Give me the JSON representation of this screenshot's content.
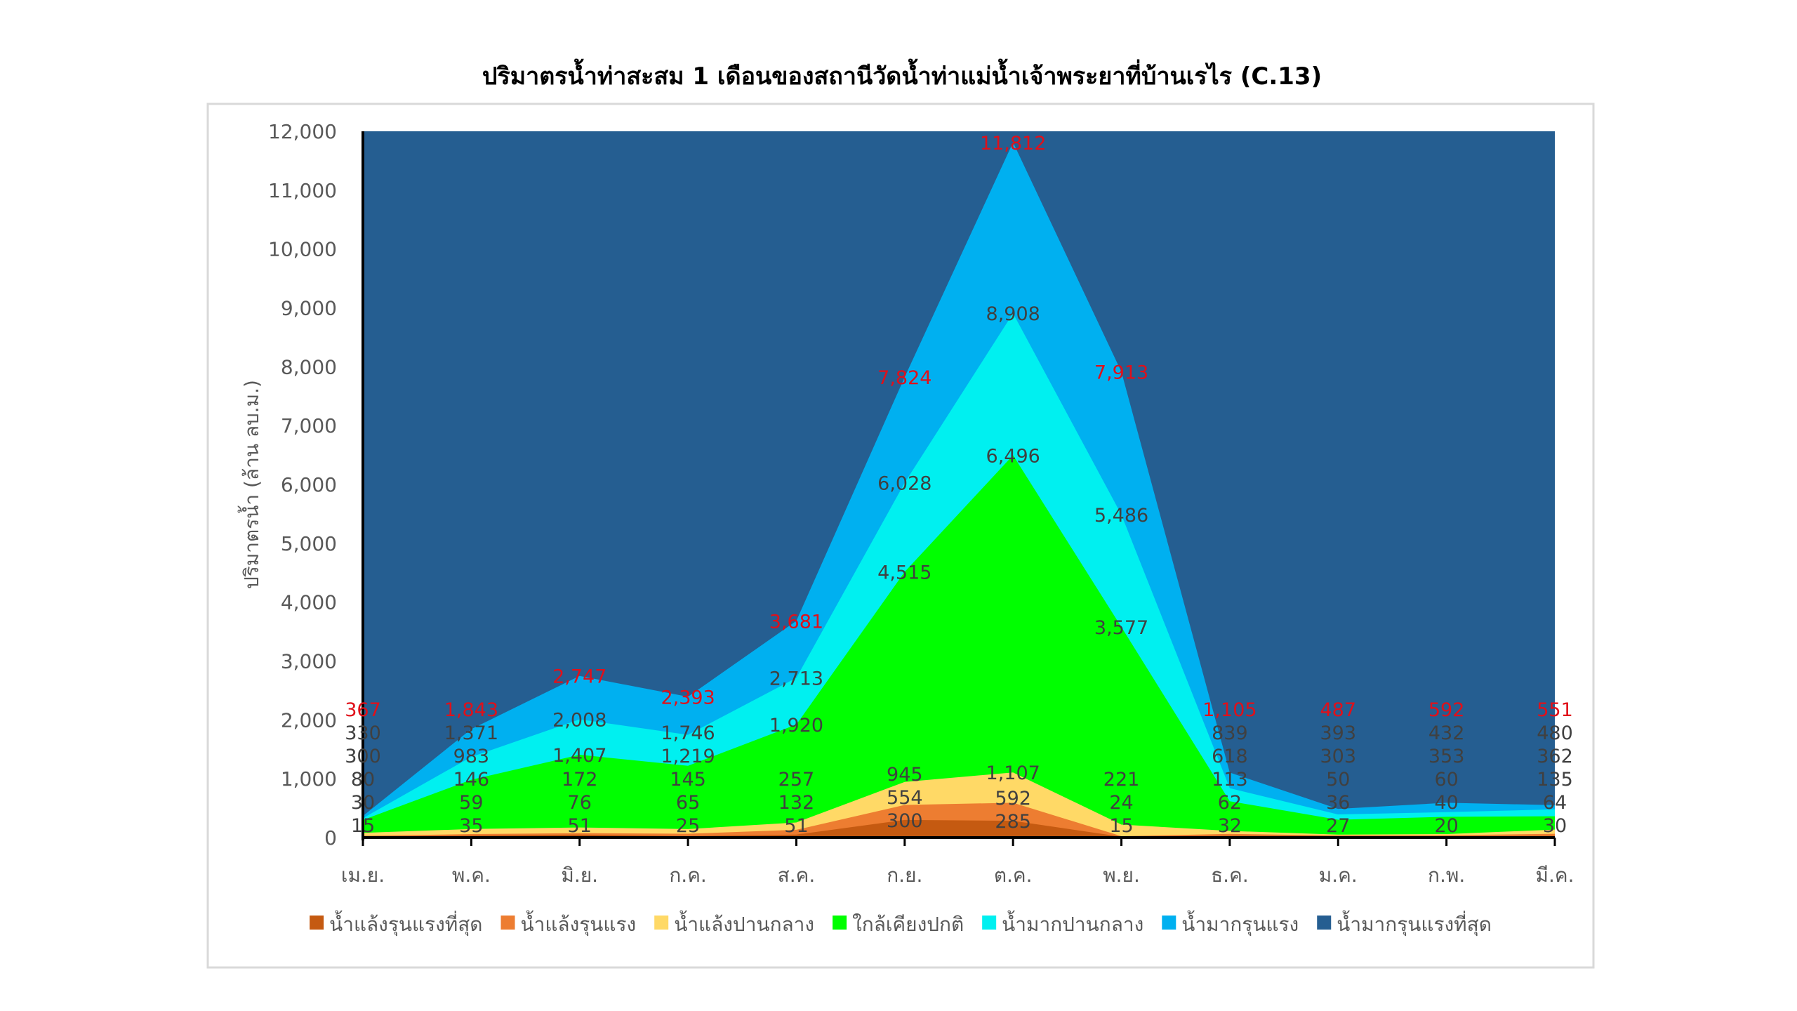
{
  "chart_data": {
    "type": "area",
    "title": "ปริมาตรน้ำท่าสะสม 1 เดือนของสถานีวัดน้ำท่าแม่น้ำเจ้าพระยาที่บ้านเรไร (C.13)",
    "xlabel": "",
    "ylabel": "ปริมาตรน้ำ (ล้าน ลบ.ม.)",
    "ylim": [
      0,
      12000
    ],
    "yticks": [
      0,
      1000,
      2000,
      3000,
      4000,
      5000,
      6000,
      7000,
      8000,
      9000,
      10000,
      11000,
      12000
    ],
    "ytick_labels": [
      "0",
      "1,000",
      "2,000",
      "3,000",
      "4,000",
      "5,000",
      "6,000",
      "7,000",
      "8,000",
      "9,000",
      "10,000",
      "11,000",
      "12,000"
    ],
    "categories": [
      "เม.ย.",
      "พ.ค.",
      "มิ.ย.",
      "ก.ค.",
      "ส.ค.",
      "ก.ย.",
      "ต.ค.",
      "พ.ย.",
      "ธ.ค.",
      "ม.ค.",
      "ก.พ.",
      "มี.ค."
    ],
    "grid": false,
    "legend_position": "bottom",
    "value_mode": "upper bound of each class (areas overlap from 0)",
    "series": [
      {
        "name": "น้ำแล้งรุนแรงที่สุด",
        "color": "#C55A11",
        "values": [
          15,
          35,
          51,
          25,
          51,
          300,
          285,
          15,
          32,
          27,
          20,
          30
        ],
        "show_labels": true
      },
      {
        "name": "น้ำแล้งรุนแรง",
        "color": "#ED7D31",
        "values": [
          30,
          59,
          76,
          65,
          132,
          554,
          592,
          24,
          62,
          36,
          40,
          64
        ],
        "show_labels": true
      },
      {
        "name": "น้ำแล้งปานกลาง",
        "color": "#FFD966",
        "values": [
          80,
          146,
          172,
          145,
          257,
          945,
          1107,
          221,
          113,
          50,
          60,
          135
        ],
        "show_labels": true
      },
      {
        "name": "ใกล้เคียงปกติ",
        "color": "#00FF00",
        "values": [
          300,
          983,
          1407,
          1219,
          1920,
          4515,
          6496,
          3577,
          618,
          303,
          353,
          362
        ],
        "show_labels": true
      },
      {
        "name": "น้ำมากปานกลาง",
        "color": "#00F0F0",
        "values": [
          330,
          1371,
          2008,
          1746,
          2713,
          6028,
          8908,
          5486,
          839,
          393,
          432,
          480
        ],
        "show_labels": true
      },
      {
        "name": "น้ำมากรุนแรง",
        "color": "#00B0F0",
        "values": [
          367,
          1843,
          2747,
          2393,
          3681,
          7824,
          11812,
          7913,
          1105,
          487,
          592,
          551
        ],
        "show_labels": true,
        "label_color": "#E0101A"
      },
      {
        "name": "น้ำมากรุนแรงที่สุด",
        "color": "#255E91",
        "values": [
          12000,
          12000,
          12000,
          12000,
          12000,
          12000,
          12000,
          12000,
          12000,
          12000,
          12000,
          12000
        ],
        "show_labels": false
      }
    ]
  }
}
